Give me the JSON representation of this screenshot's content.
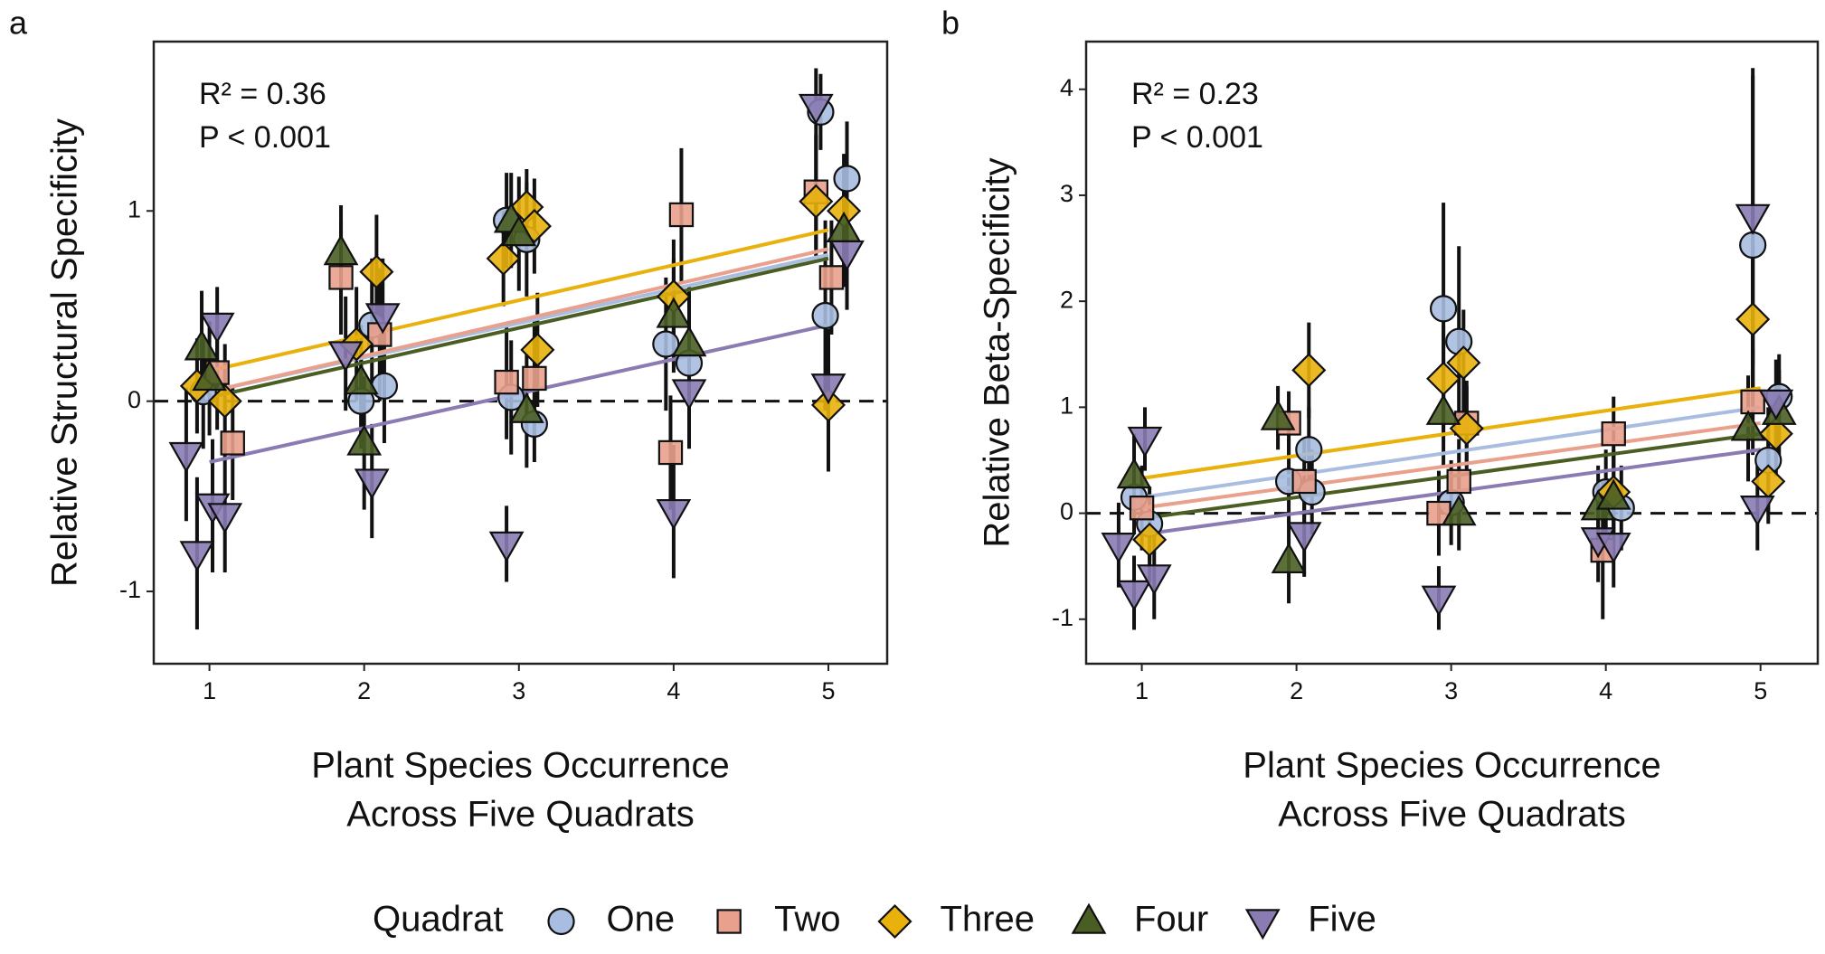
{
  "chart_data": [
    {
      "type": "scatter",
      "panel": "a",
      "ylabel": "Relative Structural Specificity",
      "xlabel": [
        "Plant Species Occurrence",
        "Across Five Quadrats"
      ],
      "annotations": [
        "R² = 0.36",
        "P < 0.001"
      ],
      "xlim": [
        0.64,
        5.38
      ],
      "ylim": [
        -1.38,
        1.89
      ],
      "xticks": [
        1,
        2,
        3,
        4,
        5
      ],
      "yticks": [
        -1,
        0,
        1
      ],
      "hline": 0,
      "series": [
        {
          "name": "One",
          "color": "#a9bde0",
          "marker": "circle",
          "x": [
            0.96,
            1.98,
            2.13,
            2.05,
            2.92,
            3.05,
            2.95,
            3.1,
            3.95,
            4.1,
            4.95,
            5.12,
            4.98
          ],
          "values": [
            0.05,
            0.0,
            0.08,
            0.4,
            0.95,
            0.85,
            0.02,
            -0.12,
            0.3,
            0.2,
            1.52,
            1.17,
            0.45
          ],
          "errors": [
            0.3,
            0.25,
            0.3,
            0.35,
            0.25,
            0.3,
            0.3,
            0.2,
            0.35,
            0.3,
            0.2,
            0.3,
            0.5
          ],
          "trend_x": [
            1,
            5
          ],
          "trend_values": [
            0.05,
            0.77
          ]
        },
        {
          "name": "Two",
          "color": "#e9a08c",
          "marker": "square",
          "x": [
            1.15,
            1.05,
            1.85,
            2.1,
            2.92,
            3.1,
            4.05,
            3.98,
            4.92,
            5.02
          ],
          "values": [
            -0.22,
            0.15,
            0.65,
            0.35,
            0.1,
            0.12,
            0.98,
            -0.27,
            1.1,
            0.65
          ],
          "errors": [
            0.3,
            0.3,
            0.3,
            0.35,
            0.3,
            0.3,
            0.35,
            0.3,
            0.3,
            0.3
          ],
          "trend_x": [
            1,
            5
          ],
          "trend_values": [
            0.05,
            0.8
          ]
        },
        {
          "name": "Three",
          "color": "#e8b10c",
          "marker": "diamond",
          "x": [
            0.92,
            1.1,
            2.08,
            1.95,
            3.05,
            3.1,
            2.9,
            3.12,
            4.0,
            4.92,
            5.1,
            5.0
          ],
          "values": [
            0.08,
            0.0,
            0.68,
            0.3,
            1.02,
            0.92,
            0.75,
            0.27,
            0.55,
            1.05,
            1.0,
            -0.02
          ],
          "errors": [
            0.25,
            0.3,
            0.3,
            0.3,
            0.2,
            0.25,
            0.25,
            0.3,
            0.3,
            0.3,
            0.3,
            0.35
          ],
          "trend_x": [
            1,
            5
          ],
          "trend_values": [
            0.16,
            0.9
          ]
        },
        {
          "name": "Four",
          "color": "#4a5e24",
          "marker": "triangle-up",
          "x": [
            0.95,
            1.0,
            1.85,
            2.0,
            1.98,
            2.95,
            3.0,
            3.05,
            4.0,
            4.1,
            5.1
          ],
          "values": [
            0.28,
            0.12,
            0.78,
            -0.22,
            0.1,
            0.95,
            0.88,
            -0.05,
            0.45,
            0.3,
            0.9
          ],
          "errors": [
            0.3,
            0.3,
            0.25,
            0.35,
            0.3,
            0.25,
            0.3,
            0.3,
            0.3,
            0.3,
            0.3
          ],
          "trend_x": [
            1,
            5
          ],
          "trend_values": [
            0.02,
            0.75
          ]
        },
        {
          "name": "Five",
          "color": "#8a7bb3",
          "marker": "triangle-down",
          "x": [
            0.85,
            0.92,
            1.05,
            1.02,
            1.1,
            1.88,
            2.05,
            2.12,
            2.92,
            4.0,
            4.1,
            4.92,
            5.12,
            5.0
          ],
          "values": [
            -0.28,
            -0.8,
            0.4,
            -0.55,
            -0.6,
            0.25,
            -0.42,
            0.45,
            -0.75,
            -0.58,
            0.05,
            1.55,
            0.78,
            0.08
          ],
          "errors": [
            0.35,
            0.4,
            0.2,
            0.35,
            0.3,
            0.3,
            0.3,
            0.3,
            0.2,
            0.35,
            0.3,
            0.2,
            0.3,
            0.3
          ],
          "trend_x": [
            1,
            5
          ],
          "trend_values": [
            -0.32,
            0.4
          ]
        }
      ]
    },
    {
      "type": "scatter",
      "panel": "b",
      "ylabel": "Relative Beta-Specificity",
      "xlabel": [
        "Plant Species Occurrence",
        "Across Five Quadrats"
      ],
      "annotations": [
        "R² = 0.23",
        "P < 0.001"
      ],
      "xlim": [
        0.64,
        5.37
      ],
      "ylim": [
        -1.42,
        4.45
      ],
      "xticks": [
        1,
        2,
        3,
        4,
        5
      ],
      "yticks": [
        -1,
        0,
        1,
        2,
        3,
        4
      ],
      "hline": 0,
      "series": [
        {
          "name": "One",
          "color": "#a9bde0",
          "marker": "circle",
          "x": [
            0.95,
            1.05,
            1.95,
            2.08,
            2.1,
            2.95,
            3.05,
            3.0,
            4.0,
            4.1,
            4.95,
            5.05,
            5.12
          ],
          "values": [
            0.15,
            -0.1,
            0.3,
            0.6,
            0.2,
            1.93,
            1.62,
            0.1,
            0.2,
            0.05,
            2.53,
            0.5,
            1.1
          ],
          "errors": [
            0.35,
            0.35,
            0.4,
            0.4,
            0.4,
            1.0,
            0.9,
            0.4,
            0.4,
            0.4,
            1.6,
            0.5,
            0.4
          ],
          "trend_x": [
            1,
            5
          ],
          "trend_values": [
            0.15,
            1.0
          ]
        },
        {
          "name": "Two",
          "color": "#e9a08c",
          "marker": "square",
          "x": [
            1.0,
            1.95,
            2.05,
            2.92,
            3.05,
            3.1,
            4.05,
            3.98,
            4.95
          ],
          "values": [
            0.05,
            0.85,
            0.3,
            0.0,
            0.3,
            0.85,
            0.75,
            -0.35,
            1.05
          ],
          "errors": [
            0.4,
            0.3,
            0.4,
            0.4,
            0.4,
            0.4,
            0.35,
            0.65,
            0.5
          ],
          "trend_x": [
            1,
            5
          ],
          "trend_values": [
            0.05,
            0.85
          ]
        },
        {
          "name": "Three",
          "color": "#e8b10c",
          "marker": "diamond",
          "x": [
            1.05,
            2.08,
            2.95,
            3.08,
            3.1,
            4.05,
            4.95,
            5.05,
            5.1
          ],
          "values": [
            -0.25,
            1.35,
            1.27,
            1.42,
            0.8,
            0.2,
            1.83,
            0.3,
            0.75
          ],
          "errors": [
            0.4,
            0.45,
            0.5,
            0.5,
            0.4,
            0.4,
            0.7,
            0.4,
            0.4
          ],
          "trend_x": [
            1,
            5
          ],
          "trend_values": [
            0.33,
            1.18
          ]
        },
        {
          "name": "Four",
          "color": "#4a5e24",
          "marker": "triangle-up",
          "x": [
            0.95,
            1.88,
            1.95,
            2.95,
            3.05,
            3.95,
            4.05,
            4.92,
            5.12
          ],
          "values": [
            0.35,
            0.9,
            -0.45,
            0.95,
            0.0,
            0.05,
            0.15,
            0.8,
            0.95
          ],
          "errors": [
            0.4,
            0.3,
            0.4,
            0.5,
            0.35,
            0.4,
            0.4,
            0.5,
            0.4
          ],
          "trend_x": [
            1,
            5
          ],
          "trend_values": [
            -0.05,
            0.75
          ]
        },
        {
          "name": "Five",
          "color": "#8a7bb3",
          "marker": "triangle-down",
          "x": [
            0.85,
            0.95,
            1.02,
            1.08,
            2.05,
            2.92,
            3.95,
            4.05,
            4.95,
            4.98,
            5.1
          ],
          "values": [
            -0.3,
            -0.75,
            0.7,
            -0.6,
            -0.2,
            -0.8,
            -0.25,
            -0.3,
            2.8,
            0.05,
            1.05
          ],
          "errors": [
            0.4,
            0.35,
            0.3,
            0.4,
            0.4,
            0.3,
            0.4,
            0.4,
            1.4,
            0.4,
            0.4
          ],
          "trend_x": [
            1,
            5
          ],
          "trend_values": [
            -0.2,
            0.6
          ]
        }
      ]
    }
  ],
  "legend": {
    "title": "Quadrat",
    "position": "bottom"
  }
}
